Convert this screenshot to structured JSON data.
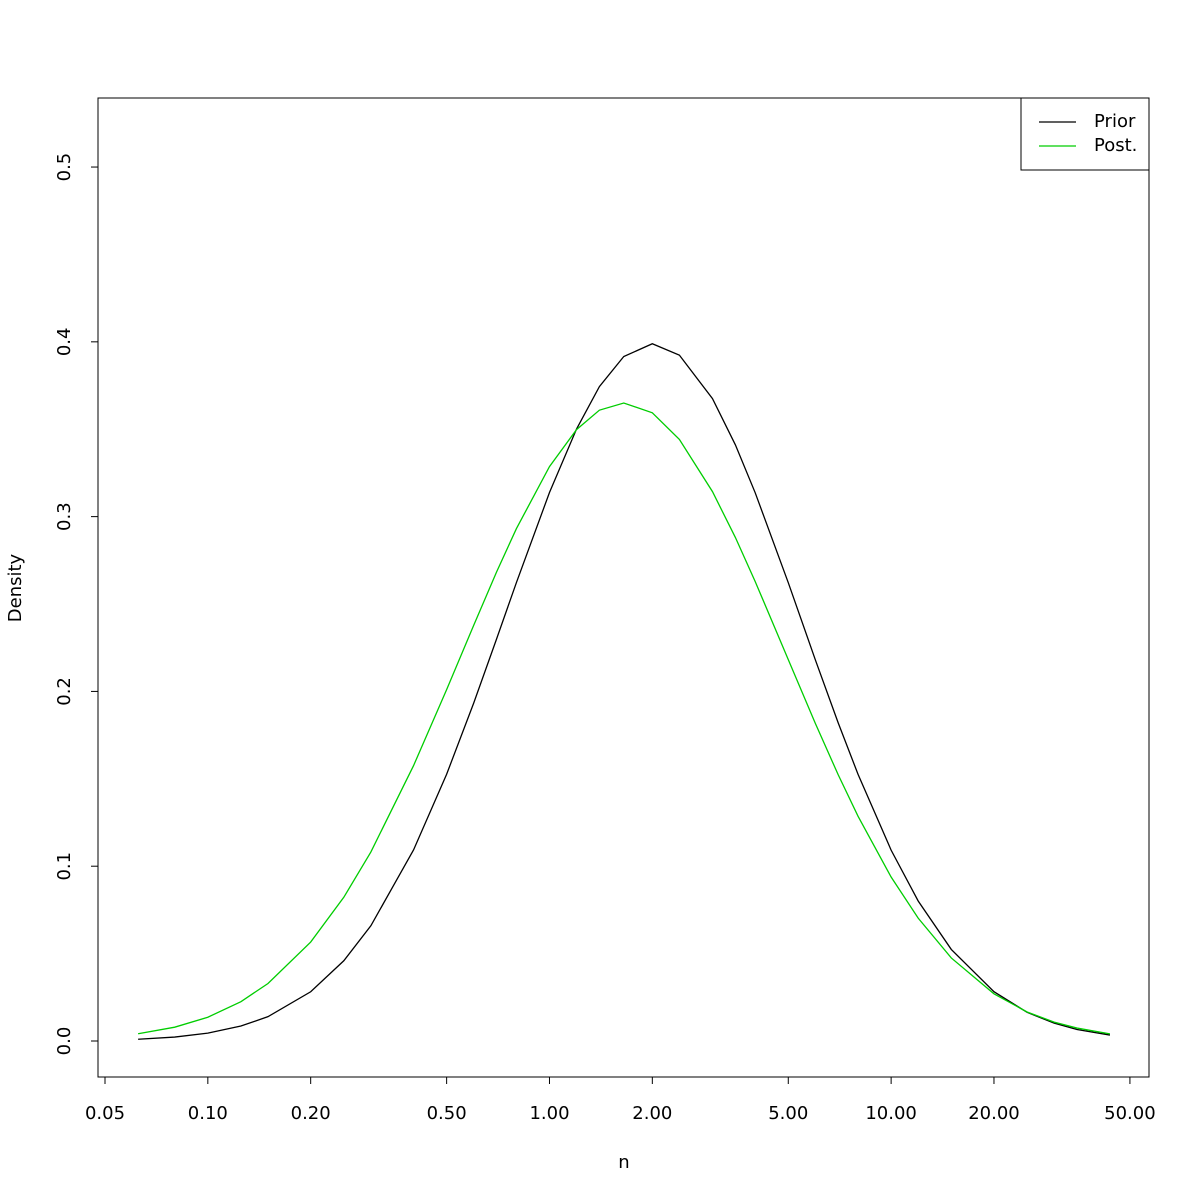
{
  "chart_data": {
    "type": "line",
    "xlabel": "n",
    "ylabel": "Density",
    "log_x": true,
    "x": [
      0.0625,
      0.08,
      0.1,
      0.125,
      0.15,
      0.2,
      0.25,
      0.3,
      0.4,
      0.5,
      0.6,
      0.7,
      0.8,
      1,
      1.2,
      1.4,
      1.65,
      2,
      2.4,
      3,
      3.5,
      4,
      5,
      6,
      7,
      8,
      10,
      12,
      15,
      20,
      25,
      30,
      35,
      43.7
    ],
    "series": [
      {
        "name": "Prior",
        "color": "#000000",
        "values": [
          0.001,
          0.00225,
          0.00449,
          0.00855,
          0.01393,
          0.02816,
          0.0459,
          0.0659,
          0.1093,
          0.1526,
          0.1933,
          0.23,
          0.2622,
          0.3138,
          0.3501,
          0.3744,
          0.3916,
          0.3989,
          0.3924,
          0.3675,
          0.3411,
          0.3137,
          0.2622,
          0.2181,
          0.182,
          0.1526,
          0.1092,
          0.0801,
          0.0524,
          0.0282,
          0.0164,
          0.0102,
          0.0066,
          0.0034
        ]
      },
      {
        "name": "Post.",
        "color": "#00cd00",
        "values": [
          0.00412,
          0.0079,
          0.0136,
          0.0225,
          0.0329,
          0.0566,
          0.0822,
          0.1081,
          0.1575,
          0.201,
          0.2378,
          0.2683,
          0.2931,
          0.3286,
          0.3498,
          0.3609,
          0.365,
          0.3594,
          0.3442,
          0.3143,
          0.2881,
          0.2629,
          0.2182,
          0.1817,
          0.1523,
          0.1286,
          0.0938,
          0.0703,
          0.0475,
          0.027,
          0.0166,
          0.0108,
          0.0074,
          0.0041
        ]
      }
    ],
    "xlim": [
      0.0477,
      56.86
    ],
    "ylim": [
      -0.0206,
      0.5395
    ],
    "xticks": [
      {
        "value": 0.05,
        "label": "0.05"
      },
      {
        "value": 0.1,
        "label": "0.10"
      },
      {
        "value": 0.2,
        "label": "0.20"
      },
      {
        "value": 0.5,
        "label": "0.50"
      },
      {
        "value": 1,
        "label": "1.00"
      },
      {
        "value": 2,
        "label": "2.00"
      },
      {
        "value": 5,
        "label": "5.00"
      },
      {
        "value": 10,
        "label": "10.00"
      },
      {
        "value": 20,
        "label": "20.00"
      },
      {
        "value": 50,
        "label": "50.00"
      }
    ],
    "yticks": [
      {
        "value": 0,
        "label": "0.0"
      },
      0.1,
      0.2,
      0.3,
      0.4,
      0.5
    ],
    "legend_position": "top-right"
  }
}
